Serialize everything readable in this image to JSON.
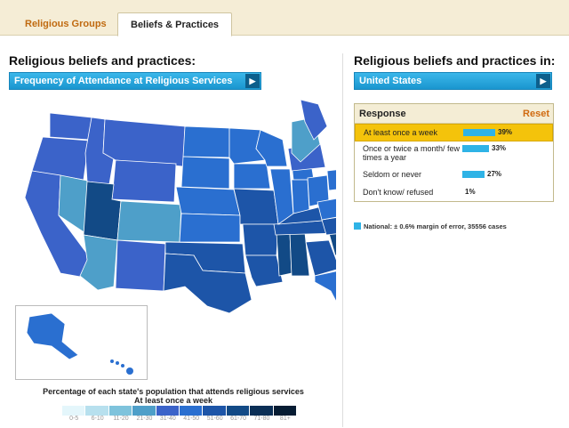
{
  "tabs": [
    {
      "label": "Religious Groups",
      "active": false
    },
    {
      "label": "Beliefs & Practices",
      "active": true
    }
  ],
  "left": {
    "title": "Religious beliefs and practices:",
    "dropdown": "Frequency of Attendance at Religious Services"
  },
  "right": {
    "title": "Religious beliefs and practices in:",
    "dropdown": "United States"
  },
  "panel": {
    "header": "Response",
    "reset": "Reset",
    "rows": [
      {
        "label": "At least once a week",
        "pct": "39%",
        "value": 39,
        "selected": true
      },
      {
        "label": "Once or twice a month/ few times a year",
        "pct": "33%",
        "value": 33,
        "selected": false
      },
      {
        "label": "Seldom or never",
        "pct": "27%",
        "value": 27,
        "selected": false
      },
      {
        "label": "Don't know/ refused",
        "pct": "1%",
        "value": 1,
        "selected": false
      }
    ]
  },
  "note": "National: ± 0.6% margin of error, 35556 cases",
  "legend": {
    "title": "Percentage of each state's population that attends religious services",
    "subtitle": "At least once a week",
    "ranges": [
      "0-5",
      "6-10",
      "11-20",
      "21-30",
      "31-40",
      "41-50",
      "51-60",
      "61-70",
      "71-80",
      "81+"
    ],
    "colors": [
      "#e4f6fb",
      "#b7e0ee",
      "#7ec3dc",
      "#4e9fc9",
      "#3b63c9",
      "#2a6fd0",
      "#1d55a8",
      "#124a86",
      "#0b2f56",
      "#061c33"
    ]
  },
  "map": {
    "accent": "#2fb3e6"
  }
}
